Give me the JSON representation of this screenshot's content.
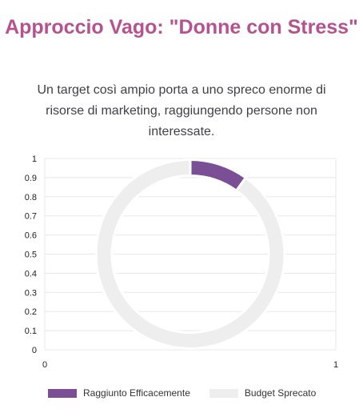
{
  "header": {
    "title": "Approccio Vago: \"Donne con Stress\"",
    "description": "Un target così ampio porta a uno spreco enorme di risorse di marketing, raggiungendo persone non interessate."
  },
  "chart_data": {
    "type": "pie",
    "variant": "doughnut",
    "slices": [
      {
        "label": "Raggiunto Efficacemente",
        "value": 10,
        "color": "#7b4f96"
      },
      {
        "label": "Budget Sprecato",
        "value": 90,
        "color": "#eeeeee"
      }
    ],
    "yticks": [
      "1",
      "0.9",
      "0.8",
      "0.7",
      "0.6",
      "0.5",
      "0.4",
      "0.3",
      "0.2",
      "0.1",
      "0"
    ],
    "xticks": [
      "0",
      "1"
    ],
    "grid": true,
    "legend": "bottom"
  }
}
